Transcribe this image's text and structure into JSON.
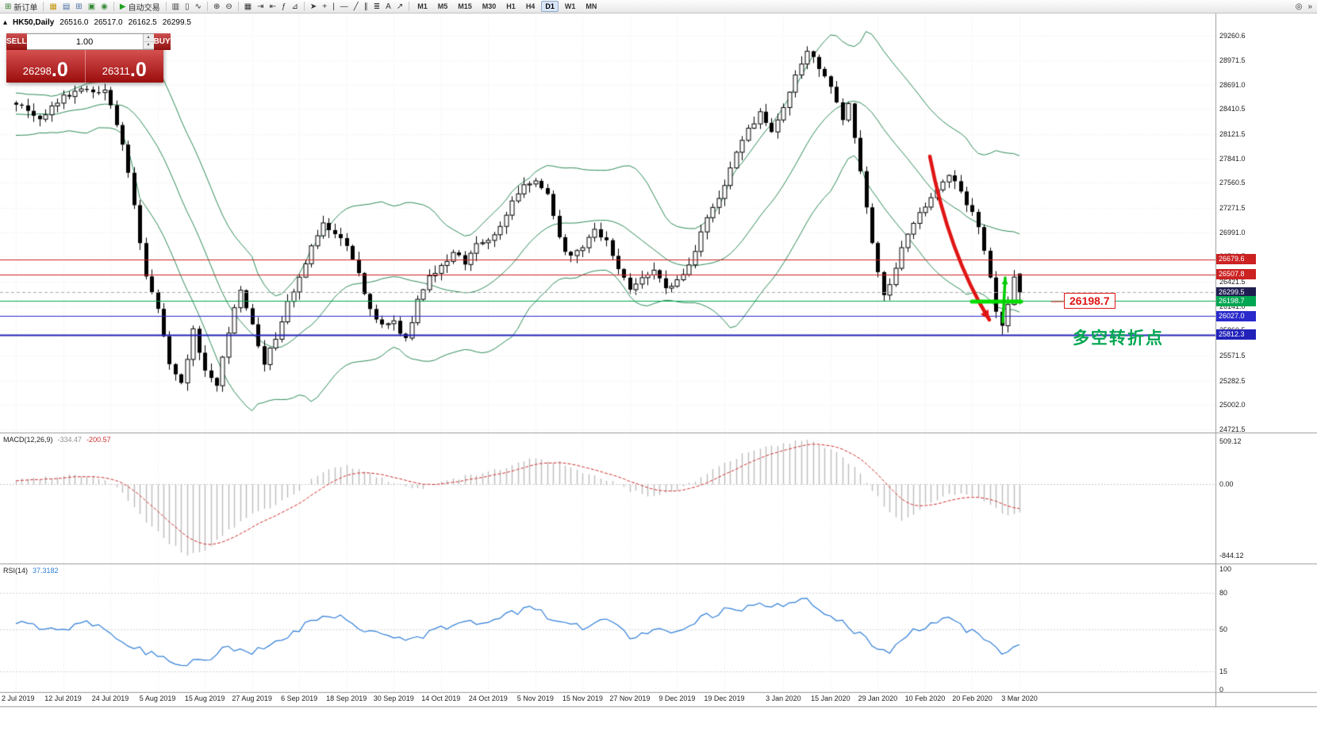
{
  "toolbar": {
    "new_order_label": "新订单",
    "autotrade_label": "自动交易",
    "left_icons": [
      {
        "name": "market-watch-icon",
        "glyph": "▦",
        "color": "#c79810"
      },
      {
        "name": "data-window-icon",
        "glyph": "▤",
        "color": "#4a6fa5"
      },
      {
        "name": "navigator-icon",
        "glyph": "⊞",
        "color": "#4a6fa5"
      },
      {
        "name": "terminal-icon",
        "glyph": "▣",
        "color": "#3a8a3a"
      },
      {
        "name": "strategy-tester-icon",
        "glyph": "◉",
        "color": "#3a8a3a"
      }
    ],
    "chart_icons": [
      {
        "name": "bar-chart-icon",
        "glyph": "▥"
      },
      {
        "name": "candlestick-chart-icon",
        "glyph": "▯"
      },
      {
        "name": "line-chart-icon",
        "glyph": "∿"
      },
      {
        "name": "zoom-in-icon",
        "glyph": "⊕"
      },
      {
        "name": "zoom-out-icon",
        "glyph": "⊖"
      },
      {
        "name": "tile-windows-icon",
        "glyph": "▦"
      },
      {
        "name": "auto-scroll-icon",
        "glyph": "⇥"
      },
      {
        "name": "chart-shift-icon",
        "glyph": "⇤"
      },
      {
        "name": "indicators-icon",
        "glyph": "ƒ"
      },
      {
        "name": "objects-list-icon",
        "glyph": "⊿"
      }
    ],
    "tool_icons": [
      {
        "name": "cursor-icon",
        "glyph": "➤"
      },
      {
        "name": "crosshair-icon",
        "glyph": "+"
      },
      {
        "name": "vertical-line-icon",
        "glyph": "|"
      },
      {
        "name": "horizontal-line-icon",
        "glyph": "―"
      },
      {
        "name": "trendline-icon",
        "glyph": "╱"
      },
      {
        "name": "channel-icon",
        "glyph": "∥"
      },
      {
        "name": "fibonacci-icon",
        "glyph": "≣"
      },
      {
        "name": "text-label-icon",
        "glyph": "A"
      },
      {
        "name": "arrow-object-icon",
        "glyph": "↗"
      }
    ],
    "timeframes": [
      "M1",
      "M5",
      "M15",
      "M30",
      "H1",
      "H4",
      "D1",
      "W1",
      "MN"
    ],
    "active_timeframe": "D1",
    "right_icons": [
      {
        "name": "search-icon",
        "glyph": "◎"
      },
      {
        "name": "toolbar-overflow-icon",
        "glyph": "»"
      }
    ]
  },
  "chart_header": {
    "marker": "▴",
    "symbol_period": "HK50,Daily",
    "open": "26516.0",
    "high": "26517.0",
    "low": "26162.5",
    "close": "26299.5"
  },
  "trade_panel": {
    "sell_label": "SELL",
    "buy_label": "BUY",
    "volume": "1.00",
    "spin_up": "▴",
    "spin_down": "▾",
    "sell_price_int": "26298",
    "sell_price_frac": ".0",
    "buy_price_int": "26311",
    "buy_price_frac": ".0"
  },
  "price_axis": {
    "labels": [
      "29260.6",
      "28971.5",
      "28691.0",
      "28410.5",
      "28121.5",
      "27841.0",
      "27560.5",
      "27271.5",
      "26991.0",
      "26710.5",
      "26421.5",
      "26141.0",
      "25860.5",
      "25571.5",
      "25282.5",
      "25002.0",
      "24721.5"
    ],
    "tags": [
      {
        "text": "26679.6",
        "price": 26679.6,
        "bg": "#cc2222"
      },
      {
        "text": "26507.8",
        "price": 26507.8,
        "bg": "#cc2222"
      },
      {
        "text": "26299.5",
        "price": 26299.5,
        "bg": "#1e1e52"
      },
      {
        "text": "26198.7",
        "price": 26198.7,
        "bg": "#00a651"
      },
      {
        "text": "26027.0",
        "price": 26027.0,
        "bg": "#2929cc"
      },
      {
        "text": "25812.3",
        "price": 25812.3,
        "bg": "#2222bb"
      }
    ]
  },
  "indicators": {
    "macd_title": "MACD(12,26,9)",
    "macd_value_main": "-334.47",
    "macd_value_signal": "-200.57",
    "macd_axis": [
      "509.12",
      "0.00",
      "-844.12"
    ],
    "rsi_title": "RSI(14)",
    "rsi_value": "37.3182",
    "rsi_axis": [
      "100",
      "80",
      "50",
      "15",
      "0"
    ]
  },
  "annotations": {
    "price_label": "26198.7",
    "turning_point_text": "多空转折点"
  },
  "time_axis": [
    [
      0,
      "2 Jul 2019"
    ],
    [
      8,
      "12 Jul 2019"
    ],
    [
      16,
      "24 Jul 2019"
    ],
    [
      24,
      "5 Aug 2019"
    ],
    [
      32,
      "15 Aug 2019"
    ],
    [
      40,
      "27 Aug 2019"
    ],
    [
      48,
      "6 Sep 2019"
    ],
    [
      56,
      "18 Sep 2019"
    ],
    [
      64,
      "30 Sep 2019"
    ],
    [
      72,
      "14 Oct 2019"
    ],
    [
      80,
      "24 Oct 2019"
    ],
    [
      88,
      "5 Nov 2019"
    ],
    [
      96,
      "15 Nov 2019"
    ],
    [
      104,
      "27 Nov 2019"
    ],
    [
      112,
      "9 Dec 2019"
    ],
    [
      120,
      "19 Dec 2019"
    ],
    [
      130,
      "3 Jan 2020"
    ],
    [
      138,
      "15 Jan 2020"
    ],
    [
      146,
      "29 Jan 2020"
    ],
    [
      154,
      "10 Feb 2020"
    ],
    [
      162,
      "20 Feb 2020"
    ],
    [
      170,
      "3 Mar 2020"
    ]
  ],
  "chart_data": {
    "type": "candlestick",
    "symbol": "HK50",
    "period": "Daily",
    "n_candles": 171,
    "ylim": [
      24721.5,
      29260.6
    ],
    "last_candle": {
      "open": 26516.0,
      "high": 26517.0,
      "low": 26162.5,
      "close": 26299.5
    },
    "swing_low": {
      "index": 167,
      "price": 25812.3
    },
    "close_anchors": [
      [
        0,
        28480
      ],
      [
        4,
        28300
      ],
      [
        8,
        28560
      ],
      [
        12,
        28650
      ],
      [
        15,
        28600
      ],
      [
        16,
        28420
      ],
      [
        18,
        28000
      ],
      [
        20,
        27300
      ],
      [
        22,
        26500
      ],
      [
        24,
        26100
      ],
      [
        26,
        25500
      ],
      [
        28,
        25250
      ],
      [
        30,
        25850
      ],
      [
        32,
        25400
      ],
      [
        34,
        25200
      ],
      [
        36,
        25850
      ],
      [
        38,
        26350
      ],
      [
        40,
        25900
      ],
      [
        42,
        25500
      ],
      [
        44,
        25750
      ],
      [
        46,
        26200
      ],
      [
        48,
        26450
      ],
      [
        50,
        26850
      ],
      [
        52,
        27100
      ],
      [
        54,
        27000
      ],
      [
        56,
        26800
      ],
      [
        58,
        26500
      ],
      [
        60,
        26100
      ],
      [
        62,
        25900
      ],
      [
        64,
        25950
      ],
      [
        66,
        25750
      ],
      [
        68,
        26200
      ],
      [
        70,
        26500
      ],
      [
        72,
        26600
      ],
      [
        74,
        26750
      ],
      [
        76,
        26650
      ],
      [
        78,
        26850
      ],
      [
        80,
        26900
      ],
      [
        82,
        27050
      ],
      [
        84,
        27350
      ],
      [
        86,
        27550
      ],
      [
        88,
        27600
      ],
      [
        90,
        27400
      ],
      [
        92,
        26900
      ],
      [
        94,
        26700
      ],
      [
        96,
        26800
      ],
      [
        98,
        27000
      ],
      [
        100,
        26900
      ],
      [
        102,
        26550
      ],
      [
        104,
        26350
      ],
      [
        106,
        26450
      ],
      [
        108,
        26550
      ],
      [
        110,
        26350
      ],
      [
        112,
        26450
      ],
      [
        114,
        26600
      ],
      [
        116,
        27000
      ],
      [
        118,
        27250
      ],
      [
        120,
        27550
      ],
      [
        122,
        27900
      ],
      [
        124,
        28200
      ],
      [
        126,
        28350
      ],
      [
        128,
        28150
      ],
      [
        130,
        28400
      ],
      [
        132,
        28800
      ],
      [
        134,
        29100
      ],
      [
        136,
        28900
      ],
      [
        138,
        28700
      ],
      [
        140,
        28300
      ],
      [
        141,
        28500
      ],
      [
        142,
        28100
      ],
      [
        144,
        27300
      ],
      [
        146,
        26500
      ],
      [
        147,
        26250
      ],
      [
        148,
        26400
      ],
      [
        150,
        26800
      ],
      [
        152,
        27100
      ],
      [
        154,
        27300
      ],
      [
        156,
        27500
      ],
      [
        158,
        27650
      ],
      [
        160,
        27450
      ],
      [
        162,
        27200
      ],
      [
        163,
        27050
      ],
      [
        164,
        26800
      ],
      [
        165,
        26500
      ],
      [
        166,
        26100
      ],
      [
        167,
        25900
      ],
      [
        168,
        26150
      ],
      [
        169,
        26480
      ],
      [
        170,
        26299.5
      ]
    ],
    "hlines": [
      {
        "price": 26679.6,
        "color": "#cc2222",
        "width": 1,
        "dash": false
      },
      {
        "price": 26507.8,
        "color": "#cc2222",
        "width": 1,
        "dash": false
      },
      {
        "price": 26299.5,
        "color": "#aaaaaa",
        "width": 1,
        "dash": true
      },
      {
        "price": 26198.7,
        "color": "#00a651",
        "width": 1,
        "dash": false
      },
      {
        "price": 26027.0,
        "color": "#2929cc",
        "width": 1,
        "dash": false
      },
      {
        "price": 25812.3,
        "color": "#2222bb",
        "width": 2,
        "dash": false
      }
    ],
    "bollinger": {
      "period": 20,
      "deviation": 2,
      "color": "#2e8b57"
    },
    "macd": {
      "ylim": [
        -844.12,
        509.12
      ],
      "hist_color": "#bdbdbd",
      "signal_color": "#d03030",
      "anchors": [
        [
          0,
          50
        ],
        [
          5,
          80
        ],
        [
          10,
          120
        ],
        [
          15,
          60
        ],
        [
          18,
          -100
        ],
        [
          22,
          -450
        ],
        [
          26,
          -700
        ],
        [
          29,
          -844
        ],
        [
          32,
          -780
        ],
        [
          36,
          -550
        ],
        [
          40,
          -350
        ],
        [
          44,
          -250
        ],
        [
          48,
          -60
        ],
        [
          52,
          150
        ],
        [
          56,
          220
        ],
        [
          60,
          120
        ],
        [
          64,
          20
        ],
        [
          68,
          -60
        ],
        [
          72,
          30
        ],
        [
          76,
          90
        ],
        [
          80,
          140
        ],
        [
          84,
          230
        ],
        [
          88,
          310
        ],
        [
          92,
          260
        ],
        [
          96,
          120
        ],
        [
          100,
          60
        ],
        [
          104,
          -80
        ],
        [
          108,
          -140
        ],
        [
          112,
          -60
        ],
        [
          116,
          80
        ],
        [
          120,
          250
        ],
        [
          124,
          380
        ],
        [
          128,
          450
        ],
        [
          132,
          500
        ],
        [
          134,
          509
        ],
        [
          138,
          420
        ],
        [
          142,
          200
        ],
        [
          146,
          -150
        ],
        [
          148,
          -350
        ],
        [
          150,
          -430
        ],
        [
          152,
          -380
        ],
        [
          154,
          -250
        ],
        [
          158,
          -100
        ],
        [
          162,
          -130
        ],
        [
          164,
          -200
        ],
        [
          166,
          -280
        ],
        [
          168,
          -380
        ],
        [
          170,
          -334.47
        ]
      ]
    },
    "rsi": {
      "ylim": [
        0,
        100
      ],
      "color": "#2f7ed8",
      "anchors": [
        [
          0,
          55
        ],
        [
          8,
          50
        ],
        [
          12,
          58
        ],
        [
          16,
          48
        ],
        [
          20,
          35
        ],
        [
          24,
          28
        ],
        [
          28,
          22
        ],
        [
          32,
          25
        ],
        [
          36,
          35
        ],
        [
          40,
          30
        ],
        [
          44,
          38
        ],
        [
          48,
          50
        ],
        [
          52,
          62
        ],
        [
          56,
          58
        ],
        [
          60,
          48
        ],
        [
          64,
          45
        ],
        [
          68,
          42
        ],
        [
          72,
          52
        ],
        [
          76,
          55
        ],
        [
          80,
          57
        ],
        [
          84,
          63
        ],
        [
          88,
          68
        ],
        [
          92,
          55
        ],
        [
          96,
          52
        ],
        [
          100,
          58
        ],
        [
          104,
          45
        ],
        [
          108,
          48
        ],
        [
          112,
          50
        ],
        [
          116,
          60
        ],
        [
          120,
          65
        ],
        [
          124,
          68
        ],
        [
          128,
          70
        ],
        [
          132,
          72
        ],
        [
          134,
          73
        ],
        [
          136,
          65
        ],
        [
          138,
          62
        ],
        [
          140,
          55
        ],
        [
          144,
          42
        ],
        [
          146,
          35
        ],
        [
          148,
          33
        ],
        [
          150,
          42
        ],
        [
          152,
          48
        ],
        [
          154,
          52
        ],
        [
          156,
          56
        ],
        [
          158,
          58
        ],
        [
          160,
          52
        ],
        [
          162,
          48
        ],
        [
          164,
          44
        ],
        [
          166,
          36
        ],
        [
          167,
          28
        ],
        [
          168,
          33
        ],
        [
          170,
          37.3
        ]
      ]
    },
    "annotation_shapes": {
      "red_arrow": {
        "from": [
          1172,
          197
        ],
        "ctrl": [
          1196,
          320
        ],
        "to": [
          1247,
          403
        ],
        "color": "#e01515",
        "width": 4.5
      },
      "green_up_arrow": {
        "from": [
          1264,
          406
        ],
        "to": [
          1267,
          350
        ],
        "color": "#00cc00",
        "width": 3.5
      },
      "green_bar": {
        "from": [
          1225,
          380
        ],
        "to": [
          1287,
          380
        ],
        "color": "#00dd00",
        "width": 5
      },
      "label_connector": {
        "from": [
          1325,
          380
        ],
        "to": [
          1340,
          380
        ],
        "color": "#e01515",
        "width": 1
      }
    }
  }
}
